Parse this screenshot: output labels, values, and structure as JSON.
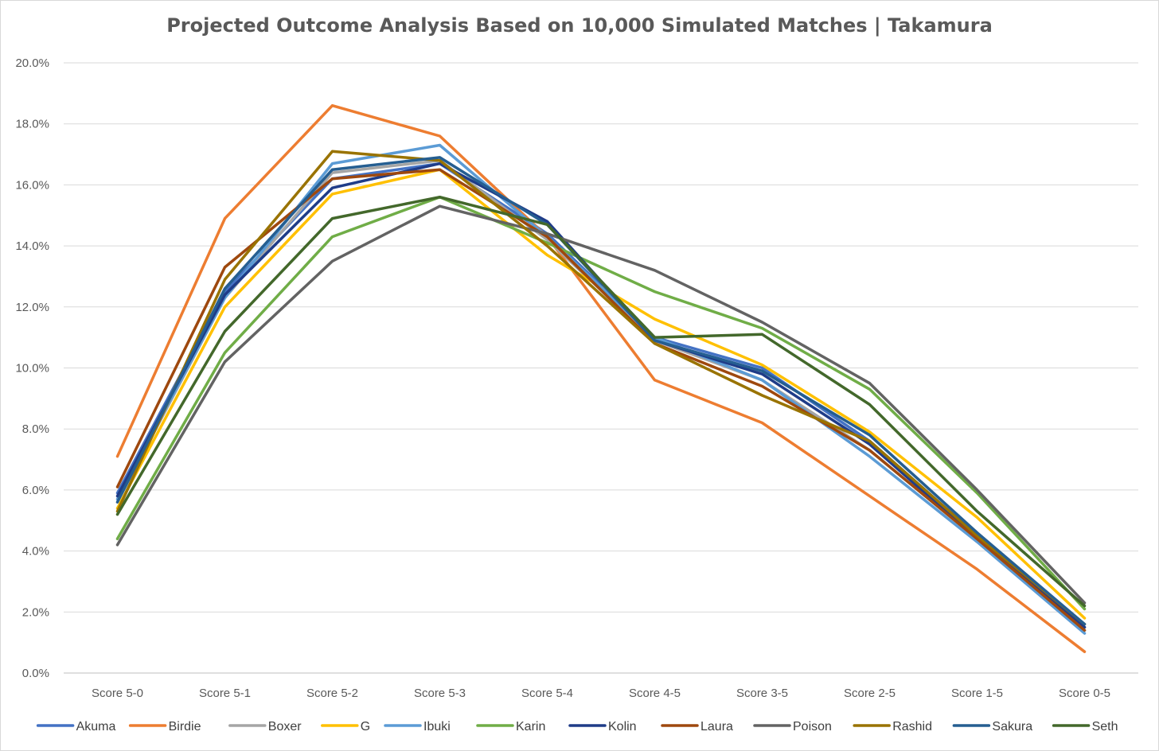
{
  "chart_data": {
    "type": "line",
    "title": "Projected Outcome Analysis Based on 10,000 Simulated Matches | Takamura",
    "xlabel": "",
    "ylabel": "",
    "categories": [
      "Score 5-0",
      "Score 5-1",
      "Score 5-2",
      "Score 5-3",
      "Score 5-4",
      "Score 4-5",
      "Score 3-5",
      "Score 2-5",
      "Score 1-5",
      "Score 0-5"
    ],
    "y_ticks": [
      "0.0%",
      "2.0%",
      "4.0%",
      "6.0%",
      "8.0%",
      "10.0%",
      "12.0%",
      "14.0%",
      "16.0%",
      "18.0%",
      "20.0%"
    ],
    "ylim": [
      0,
      20
    ],
    "y_unit": "%",
    "grid": true,
    "legend_position": "bottom",
    "series": [
      {
        "name": "Akuma",
        "color": "#4472c4",
        "values": [
          5.9,
          12.5,
          16.2,
          16.7,
          14.4,
          11.0,
          10.0,
          7.6,
          4.5,
          1.5
        ]
      },
      {
        "name": "Birdie",
        "color": "#ed7d31",
        "values": [
          7.1,
          14.9,
          18.6,
          17.6,
          14.3,
          9.6,
          8.2,
          5.8,
          3.4,
          0.7
        ]
      },
      {
        "name": "Boxer",
        "color": "#a5a5a5",
        "values": [
          5.6,
          12.3,
          16.4,
          16.8,
          14.2,
          10.9,
          9.6,
          7.3,
          4.4,
          1.4
        ]
      },
      {
        "name": "G",
        "color": "#ffc000",
        "values": [
          5.4,
          12.0,
          15.7,
          16.5,
          13.7,
          11.6,
          10.1,
          7.9,
          5.1,
          1.8
        ]
      },
      {
        "name": "Ibuki",
        "color": "#5b9bd5",
        "values": [
          5.7,
          12.3,
          16.7,
          17.3,
          14.3,
          11.0,
          9.6,
          7.1,
          4.3,
          1.3
        ]
      },
      {
        "name": "Karin",
        "color": "#70ad47",
        "values": [
          4.4,
          10.5,
          14.3,
          15.6,
          14.1,
          12.5,
          11.3,
          9.3,
          5.9,
          2.1
        ]
      },
      {
        "name": "Kolin",
        "color": "#1f3c88",
        "values": [
          5.8,
          12.4,
          15.9,
          16.7,
          14.8,
          10.9,
          9.8,
          7.5,
          4.4,
          1.5
        ]
      },
      {
        "name": "Laura",
        "color": "#9e480e",
        "values": [
          6.1,
          13.3,
          16.2,
          16.5,
          14.3,
          10.8,
          9.4,
          7.3,
          4.4,
          1.4
        ]
      },
      {
        "name": "Poison",
        "color": "#636363",
        "values": [
          4.2,
          10.2,
          13.5,
          15.3,
          14.4,
          13.2,
          11.5,
          9.5,
          6.0,
          2.3
        ]
      },
      {
        "name": "Rashid",
        "color": "#997300",
        "values": [
          5.3,
          12.9,
          17.1,
          16.8,
          14.0,
          10.8,
          9.1,
          7.6,
          4.5,
          1.6
        ]
      },
      {
        "name": "Sakura",
        "color": "#255e91",
        "values": [
          5.6,
          12.6,
          16.5,
          16.9,
          14.7,
          10.9,
          9.9,
          7.8,
          4.6,
          1.6
        ]
      },
      {
        "name": "Seth",
        "color": "#43682b",
        "values": [
          5.2,
          11.2,
          14.9,
          15.6,
          14.7,
          11.0,
          11.1,
          8.8,
          5.3,
          2.2
        ]
      }
    ]
  }
}
